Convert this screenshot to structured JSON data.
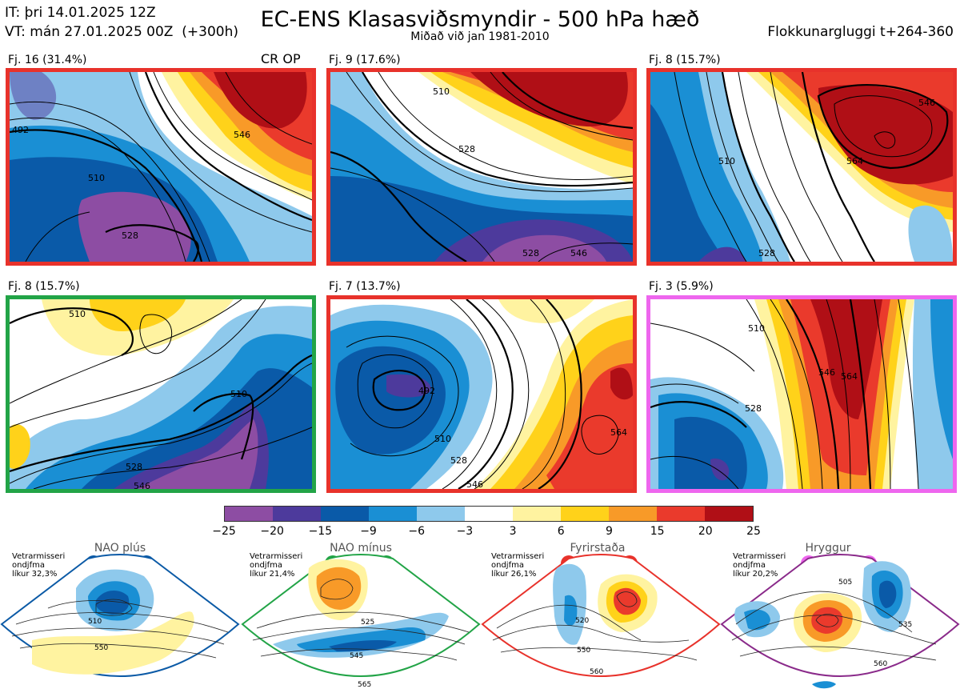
{
  "header": {
    "initial_time": "IT: þri 14.01.2025 12Z",
    "valid_time": "VT: mán 27.01.2025 00Z  (+300h)",
    "title": "EC-ENS Klasasviðsmyndir - 500 hPa hæð",
    "subtitle": "Miðað við jan 1981-2010",
    "window": "Flokkunargluggi t+264-360"
  },
  "op_marker": "CR OP",
  "clusters": [
    {
      "label": "Fj. 16 (31.4%)",
      "border": "#e8322b",
      "contours": [
        "492",
        "510",
        "528",
        "546"
      ]
    },
    {
      "label": "Fj. 9 (17.6%)",
      "border": "#e8322b",
      "contours": [
        "510",
        "528",
        "546",
        "528"
      ]
    },
    {
      "label": "Fj. 8 (15.7%)",
      "border": "#e8322b",
      "contours": [
        "510",
        "528",
        "546",
        "564"
      ]
    },
    {
      "label": "Fj. 8 (15.7%)",
      "border": "#22a447",
      "contours": [
        "510",
        "528",
        "546",
        "510"
      ]
    },
    {
      "label": "Fj. 7 (13.7%)",
      "border": "#e8322b",
      "contours": [
        "492",
        "510",
        "528",
        "546",
        "564"
      ]
    },
    {
      "label": "Fj. 3 (5.9%)",
      "border": "#ee66ee",
      "contours": [
        "510",
        "528",
        "546",
        "564"
      ]
    }
  ],
  "colorbar": {
    "colors": [
      "#8d4da3",
      "#4d3a9c",
      "#0a5aa8",
      "#1a8fd4",
      "#8ec9ec",
      "#ffffff",
      "#fff3a0",
      "#ffd21a",
      "#f89a28",
      "#ea3a2c",
      "#b00f16"
    ],
    "ticks": [
      "−25",
      "−20",
      "−15",
      "−9",
      "−6",
      "−3",
      "3",
      "6",
      "9",
      "15",
      "20",
      "25"
    ]
  },
  "regimes": [
    {
      "name": "NAO plús",
      "note": "Vetrarmisseri\nondjfma\nlíkur 32,3%",
      "color": "#0b5aa6",
      "contours": [
        "510",
        "550"
      ]
    },
    {
      "name": "NAO mínus",
      "note": "Vetrarmisseri\nondjfma\nlíkur 21,4%",
      "color": "#22a447",
      "contours": [
        "525",
        "545",
        "565"
      ]
    },
    {
      "name": "Fyrirstaða",
      "note": "Vetrarmisseri\nondjfma\nlíkur 26,1%",
      "color": "#e8322b",
      "contours": [
        "520",
        "550",
        "560"
      ]
    },
    {
      "name": "Hryggur",
      "note": "Vetrarmisseri\nondjfma\nlíkur 20,2%",
      "color": "#ee66ee",
      "contours": [
        "505",
        "535",
        "560"
      ]
    }
  ]
}
